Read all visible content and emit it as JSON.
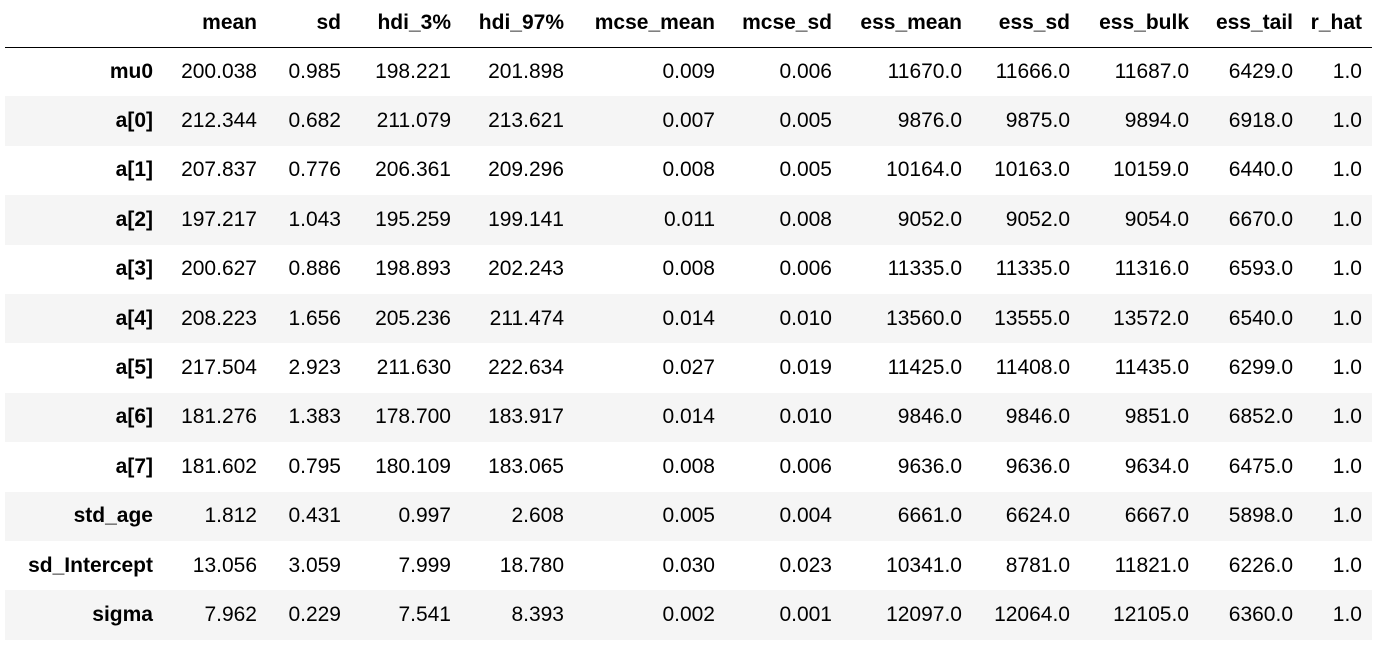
{
  "table": {
    "columns": [
      "",
      "mean",
      "sd",
      "hdi_3%",
      "hdi_97%",
      "mcse_mean",
      "mcse_sd",
      "ess_mean",
      "ess_sd",
      "ess_bulk",
      "ess_tail",
      "r_hat"
    ],
    "rows": [
      {
        "label": "mu0",
        "values": [
          "200.038",
          "0.985",
          "198.221",
          "201.898",
          "0.009",
          "0.006",
          "11670.0",
          "11666.0",
          "11687.0",
          "6429.0",
          "1.0"
        ]
      },
      {
        "label": "a[0]",
        "values": [
          "212.344",
          "0.682",
          "211.079",
          "213.621",
          "0.007",
          "0.005",
          "9876.0",
          "9875.0",
          "9894.0",
          "6918.0",
          "1.0"
        ]
      },
      {
        "label": "a[1]",
        "values": [
          "207.837",
          "0.776",
          "206.361",
          "209.296",
          "0.008",
          "0.005",
          "10164.0",
          "10163.0",
          "10159.0",
          "6440.0",
          "1.0"
        ]
      },
      {
        "label": "a[2]",
        "values": [
          "197.217",
          "1.043",
          "195.259",
          "199.141",
          "0.011",
          "0.008",
          "9052.0",
          "9052.0",
          "9054.0",
          "6670.0",
          "1.0"
        ]
      },
      {
        "label": "a[3]",
        "values": [
          "200.627",
          "0.886",
          "198.893",
          "202.243",
          "0.008",
          "0.006",
          "11335.0",
          "11335.0",
          "11316.0",
          "6593.0",
          "1.0"
        ]
      },
      {
        "label": "a[4]",
        "values": [
          "208.223",
          "1.656",
          "205.236",
          "211.474",
          "0.014",
          "0.010",
          "13560.0",
          "13555.0",
          "13572.0",
          "6540.0",
          "1.0"
        ]
      },
      {
        "label": "a[5]",
        "values": [
          "217.504",
          "2.923",
          "211.630",
          "222.634",
          "0.027",
          "0.019",
          "11425.0",
          "11408.0",
          "11435.0",
          "6299.0",
          "1.0"
        ]
      },
      {
        "label": "a[6]",
        "values": [
          "181.276",
          "1.383",
          "178.700",
          "183.917",
          "0.014",
          "0.010",
          "9846.0",
          "9846.0",
          "9851.0",
          "6852.0",
          "1.0"
        ]
      },
      {
        "label": "a[7]",
        "values": [
          "181.602",
          "0.795",
          "180.109",
          "183.065",
          "0.008",
          "0.006",
          "9636.0",
          "9636.0",
          "9634.0",
          "6475.0",
          "1.0"
        ]
      },
      {
        "label": "std_age",
        "values": [
          "1.812",
          "0.431",
          "0.997",
          "2.608",
          "0.005",
          "0.004",
          "6661.0",
          "6624.0",
          "6667.0",
          "5898.0",
          "1.0"
        ]
      },
      {
        "label": "sd_Intercept",
        "values": [
          "13.056",
          "3.059",
          "7.999",
          "18.780",
          "0.030",
          "0.023",
          "10341.0",
          "8781.0",
          "11821.0",
          "6226.0",
          "1.0"
        ]
      },
      {
        "label": "sigma",
        "values": [
          "7.962",
          "0.229",
          "7.541",
          "8.393",
          "0.002",
          "0.001",
          "12097.0",
          "12064.0",
          "12105.0",
          "6360.0",
          "1.0"
        ]
      }
    ]
  }
}
